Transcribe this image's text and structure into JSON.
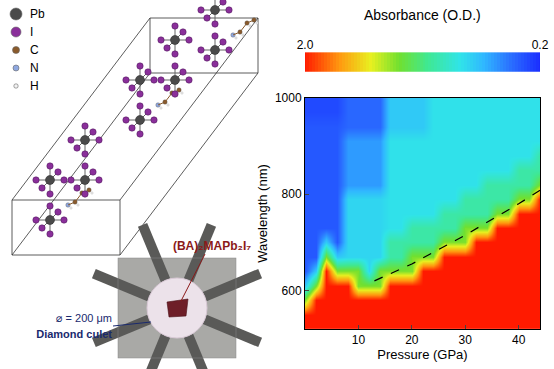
{
  "chart_data": {
    "type": "heatmap",
    "x_label": "Pressure (GPa)",
    "y_label": "Wavelength (nm)",
    "x": [
      0,
      2,
      4,
      6,
      8,
      10,
      12,
      14,
      16,
      18,
      20,
      22,
      24,
      26,
      28,
      30,
      32,
      34,
      36,
      38,
      40,
      42,
      44
    ],
    "y": [
      520,
      550,
      580,
      610,
      640,
      670,
      700,
      730,
      760,
      790,
      820,
      850,
      880,
      910,
      940,
      970,
      1000
    ],
    "cells": [
      [
        2,
        2,
        2,
        2,
        2,
        2,
        2,
        2,
        2,
        2,
        2,
        2,
        2,
        2,
        2,
        2,
        2,
        2,
        2,
        2,
        2,
        2,
        2
      ],
      [
        2,
        2,
        2,
        2,
        2,
        2,
        2,
        2,
        2,
        2,
        2,
        2,
        2,
        2,
        2,
        2,
        2,
        2,
        2,
        2,
        2,
        2,
        2
      ],
      [
        1.3,
        2,
        2,
        2,
        2,
        2,
        2,
        2,
        2,
        2,
        2,
        2,
        2,
        2,
        2,
        2,
        2,
        2,
        2,
        2,
        2,
        2,
        2
      ],
      [
        0.7,
        1.3,
        2,
        2,
        2,
        1.3,
        1.3,
        1.3,
        2,
        2,
        2,
        2,
        2,
        2,
        2,
        2,
        2,
        2,
        2,
        2,
        2,
        2,
        2
      ],
      [
        0.35,
        0.7,
        2,
        1.3,
        1.3,
        1.3,
        0.75,
        1.3,
        1.3,
        1.3,
        1.3,
        2,
        2,
        2,
        2,
        2,
        2,
        2,
        2,
        2,
        2,
        2,
        2
      ],
      [
        0.35,
        0.35,
        1.3,
        0.7,
        0.75,
        0.75,
        0.75,
        0.75,
        1,
        1,
        1.3,
        1.3,
        1.3,
        2,
        2,
        2,
        2,
        2,
        2,
        2,
        2,
        2,
        2
      ],
      [
        0.35,
        0.35,
        0.7,
        0.35,
        0.75,
        0.75,
        0.75,
        0.75,
        1,
        1,
        1,
        1,
        1,
        1.3,
        1.3,
        1.3,
        2,
        2,
        2,
        2,
        2,
        2,
        2
      ],
      [
        0.35,
        0.35,
        0.35,
        0.35,
        0.75,
        0.75,
        0.75,
        0.75,
        0.8,
        0.8,
        1,
        1,
        1,
        1,
        1,
        1.3,
        1.3,
        1.3,
        2,
        2,
        2,
        2,
        2
      ],
      [
        0.35,
        0.35,
        0.35,
        0.35,
        0.75,
        0.75,
        0.75,
        0.75,
        0.8,
        0.8,
        0.8,
        0.8,
        0.8,
        1,
        1,
        1,
        1,
        1,
        1.3,
        1.3,
        2,
        2,
        2
      ],
      [
        0.35,
        0.35,
        0.35,
        0.35,
        0.75,
        0.75,
        0.75,
        0.75,
        0.8,
        0.8,
        0.8,
        0.8,
        0.8,
        0.8,
        0.8,
        1,
        1,
        1,
        1,
        1,
        1.3,
        1.3,
        2
      ],
      [
        0.35,
        0.35,
        0.35,
        0.35,
        0.55,
        0.55,
        0.55,
        0.55,
        0.8,
        0.8,
        0.8,
        0.8,
        0.8,
        0.8,
        0.8,
        0.8,
        0.8,
        1,
        1,
        1,
        1,
        1,
        1.3
      ],
      [
        0.35,
        0.35,
        0.35,
        0.35,
        0.55,
        0.55,
        0.55,
        0.55,
        0.8,
        0.8,
        0.8,
        0.8,
        0.8,
        0.8,
        0.8,
        0.8,
        0.8,
        0.8,
        0.8,
        0.8,
        1,
        1,
        1
      ],
      [
        0.35,
        0.35,
        0.35,
        0.35,
        0.55,
        0.55,
        0.55,
        0.55,
        0.8,
        0.8,
        0.8,
        0.8,
        0.8,
        0.8,
        0.8,
        0.8,
        0.8,
        0.8,
        0.8,
        0.8,
        0.8,
        0.8,
        1
      ],
      [
        0.35,
        0.35,
        0.35,
        0.35,
        0.55,
        0.55,
        0.55,
        0.55,
        0.8,
        0.8,
        0.8,
        0.8,
        0.8,
        0.8,
        0.8,
        0.8,
        0.8,
        0.8,
        0.8,
        0.8,
        0.8,
        0.8,
        0.8
      ],
      [
        0.35,
        0.35,
        0.35,
        0.35,
        0.4,
        0.4,
        0.4,
        0.4,
        0.7,
        0.7,
        0.7,
        0.7,
        0.8,
        0.8,
        0.8,
        0.8,
        0.8,
        0.8,
        0.8,
        0.8,
        0.8,
        0.8,
        0.8
      ],
      [
        0.3,
        0.3,
        0.3,
        0.3,
        0.4,
        0.4,
        0.4,
        0.4,
        0.7,
        0.7,
        0.7,
        0.7,
        0.8,
        0.8,
        0.8,
        0.8,
        0.8,
        0.8,
        0.8,
        0.8,
        0.8,
        0.8,
        0.8
      ],
      [
        0.3,
        0.3,
        0.3,
        0.3,
        0.4,
        0.4,
        0.4,
        0.4,
        0.7,
        0.7,
        0.7,
        0.7,
        0.8,
        0.8,
        0.8,
        0.8,
        0.8,
        0.8,
        0.8,
        0.8,
        0.8,
        0.8,
        0.8
      ]
    ],
    "xlim": [
      0,
      44
    ],
    "xticks": [
      10,
      20,
      30,
      40
    ],
    "ylim": [
      520,
      1000
    ],
    "yticks": [
      600,
      800,
      1000
    ],
    "colorbar": {
      "title": "Absorbance (O.D.)",
      "range": [
        2,
        0.2
      ],
      "ticks": [
        {
          "value": 2,
          "label": "2.0"
        },
        {
          "value": 0.2,
          "label": "0.2"
        }
      ]
    },
    "lines": [
      {
        "x": [
          13,
          20,
          30,
          40,
          44
        ],
        "y": [
          620,
          655,
          715,
          780,
          808
        ],
        "line_style": "dashed",
        "color": "#000000"
      }
    ]
  },
  "diagram": {
    "legend": [
      {
        "label": "Pb",
        "color": "#4a4a4a"
      },
      {
        "label": "I",
        "color": "#8a2f9a"
      },
      {
        "label": "C",
        "color": "#8a5a2b"
      },
      {
        "label": "N",
        "color": "#8fa8e0"
      },
      {
        "label": "H",
        "color": "#f2f2f2"
      }
    ],
    "photo": {
      "sample_label": "(BA)₂MAPb₂I₇",
      "size_label": "⌀ = 200 μm",
      "culet_label": "Diamond culet"
    }
  }
}
